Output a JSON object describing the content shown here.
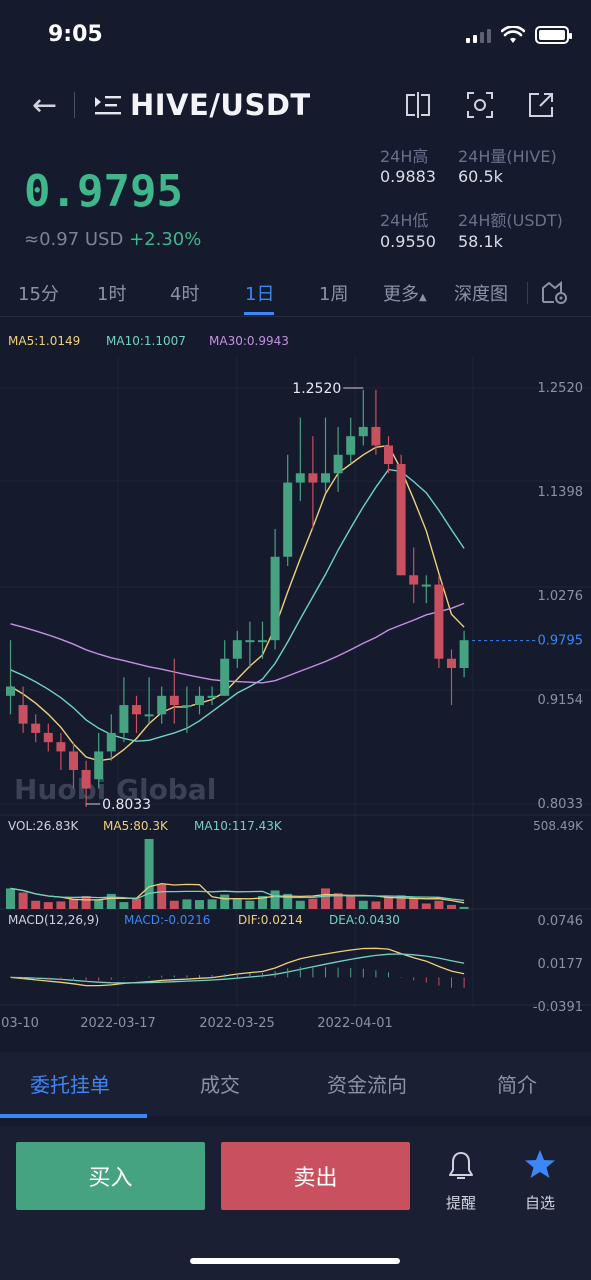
{
  "status_bar": {
    "time": "9:05"
  },
  "header": {
    "pair": "HIVE/USDT"
  },
  "ticker": {
    "last_price": "0.9795",
    "approx_prefix": "≈0.97 USD",
    "change": "+2.30%",
    "high_label": "24H高",
    "high_value": "0.9883",
    "vol_label": "24H量(HIVE)",
    "vol_value": "60.5k",
    "low_label": "24H低",
    "low_value": "0.9550",
    "amount_label": "24H额(USDT)",
    "amount_value": "58.1k"
  },
  "interval_tabs": [
    {
      "label": "15分"
    },
    {
      "label": "1时"
    },
    {
      "label": "4时"
    },
    {
      "label": "1日"
    },
    {
      "label": "1周"
    },
    {
      "label": "更多"
    },
    {
      "label": "深度图"
    }
  ],
  "indicators": {
    "ma5": "MA5:1.0149",
    "ma10": "MA10:1.1007",
    "ma30": "MA30:0.9943",
    "vol": "VOL:26.83K",
    "vol_ma5": "MA5:80.3K",
    "vol_ma10": "MA10:117.43K",
    "vol_max": "508.49K",
    "macd_title": "MACD(12,26,9)",
    "macd": "MACD:-0.0216",
    "dif": "DIF:0.0214",
    "dea": "DEA:0.0430"
  },
  "watermark": "Huobi Global",
  "chart_data": {
    "type": "candlestick",
    "price_axis_labels": [
      "1.2520",
      "1.1398",
      "1.0276",
      "0.9795",
      "0.9154",
      "0.8033"
    ],
    "macd_axis_labels": [
      "0.0746",
      "0.0177",
      "-0.0391"
    ],
    "x_tick_labels": [
      "03-10",
      "2022-03-17",
      "2022-03-25",
      "2022-04-01"
    ],
    "high_marker": "1.2520",
    "low_marker": "0.8033",
    "ylim": [
      0.8033,
      1.252
    ],
    "candles": [
      {
        "o": 0.92,
        "c": 0.93,
        "h": 0.98,
        "l": 0.9
      },
      {
        "o": 0.91,
        "c": 0.89,
        "h": 0.93,
        "l": 0.88
      },
      {
        "o": 0.89,
        "c": 0.88,
        "h": 0.9,
        "l": 0.87
      },
      {
        "o": 0.88,
        "c": 0.87,
        "h": 0.89,
        "l": 0.86
      },
      {
        "o": 0.87,
        "c": 0.86,
        "h": 0.88,
        "l": 0.84
      },
      {
        "o": 0.86,
        "c": 0.84,
        "h": 0.87,
        "l": 0.82
      },
      {
        "o": 0.84,
        "c": 0.82,
        "h": 0.85,
        "l": 0.8
      },
      {
        "o": 0.83,
        "c": 0.86,
        "h": 0.88,
        "l": 0.82
      },
      {
        "o": 0.86,
        "c": 0.88,
        "h": 0.9,
        "l": 0.85
      },
      {
        "o": 0.88,
        "c": 0.91,
        "h": 0.94,
        "l": 0.87
      },
      {
        "o": 0.91,
        "c": 0.9,
        "h": 0.92,
        "l": 0.88
      },
      {
        "o": 0.9,
        "c": 0.9,
        "h": 0.94,
        "l": 0.89
      },
      {
        "o": 0.9,
        "c": 0.92,
        "h": 0.93,
        "l": 0.89
      },
      {
        "o": 0.92,
        "c": 0.91,
        "h": 0.96,
        "l": 0.89
      },
      {
        "o": 0.91,
        "c": 0.91,
        "h": 0.93,
        "l": 0.88
      },
      {
        "o": 0.91,
        "c": 0.92,
        "h": 0.93,
        "l": 0.9
      },
      {
        "o": 0.92,
        "c": 0.92,
        "h": 0.93,
        "l": 0.91
      },
      {
        "o": 0.92,
        "c": 0.96,
        "h": 0.98,
        "l": 0.92
      },
      {
        "o": 0.96,
        "c": 0.98,
        "h": 0.99,
        "l": 0.95
      },
      {
        "o": 0.98,
        "c": 0.98,
        "h": 1.0,
        "l": 0.95
      },
      {
        "o": 0.98,
        "c": 0.98,
        "h": 1.0,
        "l": 0.96
      },
      {
        "o": 0.98,
        "c": 1.07,
        "h": 1.1,
        "l": 0.97
      },
      {
        "o": 1.07,
        "c": 1.15,
        "h": 1.18,
        "l": 1.06
      },
      {
        "o": 1.15,
        "c": 1.16,
        "h": 1.22,
        "l": 1.13
      },
      {
        "o": 1.16,
        "c": 1.15,
        "h": 1.2,
        "l": 1.1
      },
      {
        "o": 1.15,
        "c": 1.16,
        "h": 1.22,
        "l": 1.14
      },
      {
        "o": 1.16,
        "c": 1.18,
        "h": 1.21,
        "l": 1.14
      },
      {
        "o": 1.18,
        "c": 1.2,
        "h": 1.22,
        "l": 1.17
      },
      {
        "o": 1.2,
        "c": 1.21,
        "h": 1.25,
        "l": 1.19
      },
      {
        "o": 1.21,
        "c": 1.19,
        "h": 1.25,
        "l": 1.18
      },
      {
        "o": 1.19,
        "c": 1.17,
        "h": 1.2,
        "l": 1.16
      },
      {
        "o": 1.17,
        "c": 1.05,
        "h": 1.18,
        "l": 1.05
      },
      {
        "o": 1.05,
        "c": 1.04,
        "h": 1.08,
        "l": 1.02
      },
      {
        "o": 1.04,
        "c": 1.04,
        "h": 1.05,
        "l": 1.02
      },
      {
        "o": 1.04,
        "c": 0.96,
        "h": 1.05,
        "l": 0.95
      },
      {
        "o": 0.96,
        "c": 0.95,
        "h": 0.97,
        "l": 0.91
      },
      {
        "o": 0.95,
        "c": 0.98,
        "h": 0.99,
        "l": 0.94
      }
    ],
    "volume": [
      {
        "v": 150,
        "up": true
      },
      {
        "v": 120,
        "up": false
      },
      {
        "v": 60,
        "up": false
      },
      {
        "v": 50,
        "up": false
      },
      {
        "v": 55,
        "up": false
      },
      {
        "v": 70,
        "up": false
      },
      {
        "v": 95,
        "up": false
      },
      {
        "v": 65,
        "up": true
      },
      {
        "v": 110,
        "up": true
      },
      {
        "v": 50,
        "up": true
      },
      {
        "v": 75,
        "up": false
      },
      {
        "v": 510,
        "up": true
      },
      {
        "v": 180,
        "up": false
      },
      {
        "v": 60,
        "up": false
      },
      {
        "v": 70,
        "up": true
      },
      {
        "v": 65,
        "up": true
      },
      {
        "v": 70,
        "up": true
      },
      {
        "v": 105,
        "up": true
      },
      {
        "v": 70,
        "up": true
      },
      {
        "v": 60,
        "up": true
      },
      {
        "v": 95,
        "up": true
      },
      {
        "v": 135,
        "up": true
      },
      {
        "v": 110,
        "up": true
      },
      {
        "v": 60,
        "up": true
      },
      {
        "v": 75,
        "up": false
      },
      {
        "v": 150,
        "up": false
      },
      {
        "v": 115,
        "up": false
      },
      {
        "v": 95,
        "up": false
      },
      {
        "v": 60,
        "up": true
      },
      {
        "v": 55,
        "up": false
      },
      {
        "v": 95,
        "up": false
      },
      {
        "v": 100,
        "up": false
      },
      {
        "v": 80,
        "up": false
      },
      {
        "v": 40,
        "up": false
      },
      {
        "v": 60,
        "up": false
      },
      {
        "v": 30,
        "up": false
      },
      {
        "v": 15,
        "up": true
      }
    ]
  },
  "bottom_tabs": [
    {
      "label": "委托挂单"
    },
    {
      "label": "成交"
    },
    {
      "label": "资金流向"
    },
    {
      "label": "简介"
    }
  ],
  "actions": {
    "buy": "买入",
    "sell": "卖出",
    "alert": "提醒",
    "favorite": "自选"
  },
  "colors": {
    "up": "#45a381",
    "down": "#c9505e",
    "accent": "#3d86f5",
    "ma5": "#efd07a",
    "ma10": "#72d2c0",
    "ma30": "#c590e3"
  }
}
